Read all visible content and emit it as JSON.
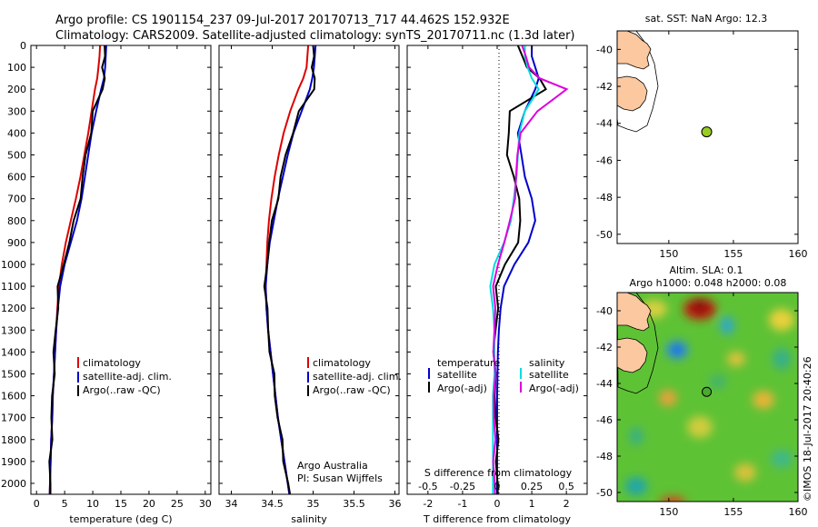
{
  "header": {
    "line1": "Argo profile: CS 1901154_237 09-Jul-2017 20170713_717 44.462S 152.932E",
    "line2": "Climatology: CARS2009. Satellite-adjusted climatology: synTS_20170711.nc (1.3d later)"
  },
  "colors": {
    "climatology": "#dd0000",
    "satellite": "#0000cc",
    "argo": "#000000",
    "sal_satellite": "#00dddd",
    "sal_argo": "#dd00dd",
    "land": "#fcc8a0",
    "float": "#99cc22"
  },
  "chart_data": [
    {
      "type": "line",
      "xlabel": "temperature (deg C)",
      "ylabel": "",
      "xlim": [
        -1,
        31
      ],
      "ylim": [
        2050,
        0
      ],
      "xticks": [
        "0",
        "5",
        "10",
        "15",
        "20",
        "25",
        "30"
      ],
      "yticks": [
        "0",
        "100",
        "200",
        "300",
        "400",
        "500",
        "600",
        "700",
        "800",
        "900",
        "1000",
        "1100",
        "1200",
        "1300",
        "1400",
        "1500",
        "1600",
        "1700",
        "1800",
        "1900",
        "2000"
      ],
      "depth": [
        0,
        50,
        100,
        150,
        200,
        300,
        400,
        500,
        600,
        700,
        800,
        900,
        1000,
        1100,
        1200,
        1300,
        1400,
        1500,
        1600,
        1700,
        1800,
        1900,
        2000,
        2050
      ],
      "legend": [
        "climatology",
        "satellite-adj. clim.",
        "Argo(..raw -QC)"
      ],
      "series": [
        {
          "name": "climatology",
          "color": "#dd0000",
          "values": [
            11.3,
            11.2,
            11.0,
            10.8,
            10.4,
            9.8,
            9.2,
            8.5,
            7.8,
            7.0,
            6.1,
            5.2,
            4.5,
            4.0,
            3.7,
            3.5,
            3.3,
            3.1,
            2.9,
            2.8,
            2.6,
            2.5,
            2.4,
            2.35
          ]
        },
        {
          "name": "satellite-adj. clim.",
          "color": "#0000cc",
          "values": [
            12.4,
            12.3,
            12.2,
            12.0,
            11.5,
            10.6,
            9.8,
            9.2,
            8.6,
            8.0,
            7.2,
            6.1,
            5.0,
            4.2,
            3.8,
            3.5,
            3.3,
            3.1,
            2.9,
            2.8,
            2.6,
            2.5,
            2.4,
            2.35
          ]
        },
        {
          "name": "Argo(..raw -QC)",
          "color": "#000000",
          "values": [
            12.1,
            12.0,
            11.9,
            12.0,
            11.7,
            10.2,
            9.5,
            8.8,
            8.3,
            7.6,
            6.8,
            5.8,
            4.7,
            4.0,
            3.7,
            3.4,
            3.2,
            3.0,
            2.9,
            2.7,
            2.6,
            2.5,
            2.4,
            2.35
          ]
        }
      ]
    },
    {
      "type": "line",
      "xlabel": "salinity",
      "xlim": [
        33.85,
        36.05
      ],
      "ylim": [
        2050,
        0
      ],
      "xticks": [
        "34",
        "34.5",
        "35",
        "35.5",
        "36"
      ],
      "depth": [
        0,
        50,
        100,
        150,
        200,
        300,
        400,
        500,
        600,
        700,
        800,
        900,
        1000,
        1100,
        1200,
        1300,
        1400,
        1500,
        1600,
        1700,
        1800,
        1900,
        2000,
        2050
      ],
      "legend": [
        "climatology",
        "satellite-adj. clim.",
        "Argo(..raw -QC)"
      ],
      "annotation": [
        "Argo Australia",
        "PI: Susan Wijffels"
      ],
      "series": [
        {
          "name": "climatology",
          "color": "#dd0000",
          "values": [
            34.94,
            34.93,
            34.92,
            34.88,
            34.82,
            34.72,
            34.64,
            34.58,
            34.53,
            34.49,
            34.46,
            34.44,
            34.43,
            34.42,
            34.43,
            34.45,
            34.48,
            34.51,
            34.54,
            34.57,
            34.61,
            34.65,
            34.69,
            34.71
          ]
        },
        {
          "name": "satellite-adj. clim.",
          "color": "#0000cc",
          "values": [
            35.03,
            35.02,
            35.01,
            34.99,
            34.96,
            34.86,
            34.76,
            34.69,
            34.63,
            34.57,
            34.52,
            34.47,
            34.44,
            34.42,
            34.43,
            34.45,
            34.48,
            34.51,
            34.54,
            34.57,
            34.61,
            34.65,
            34.69,
            34.71
          ]
        },
        {
          "name": "Argo(..raw -QC)",
          "color": "#000000",
          "values": [
            35.0,
            35.0,
            35.0,
            35.01,
            35.01,
            34.84,
            34.74,
            34.67,
            34.61,
            34.56,
            34.51,
            34.46,
            34.43,
            34.42,
            34.43,
            34.45,
            34.48,
            34.51,
            34.54,
            34.57,
            34.61,
            34.65,
            34.69,
            34.71
          ]
        }
      ]
    },
    {
      "type": "line",
      "xlabel": "T difference from climatology",
      "xlabel_top": "S difference from climatology",
      "xlim": [
        -2.6,
        2.6
      ],
      "ylim": [
        2050,
        0
      ],
      "xticks": [
        "-2",
        "-1",
        "0",
        "1",
        "2"
      ],
      "xticks_s": [
        "-0.5",
        "-0.25",
        "0",
        "0.25",
        "0.5"
      ],
      "legend_temperature": [
        "temperature",
        "satellite",
        "Argo(-adj)"
      ],
      "legend_salinity": [
        "salinity",
        "satellite",
        "Argo(-adj)"
      ],
      "depth": [
        0,
        50,
        100,
        150,
        200,
        300,
        400,
        500,
        600,
        700,
        800,
        900,
        1000,
        1100,
        1200,
        1300,
        1400,
        1500,
        1600,
        1700,
        1800,
        1900,
        2000,
        2050
      ],
      "series": [
        {
          "name": "temperature satellite",
          "color": "#0000cc",
          "values": [
            1.0,
            1.0,
            1.1,
            1.2,
            1.1,
            0.8,
            0.6,
            0.7,
            0.8,
            1.0,
            1.1,
            0.9,
            0.5,
            0.2,
            0.1,
            0.05,
            0.02,
            0.01,
            0.0,
            0.0,
            0.0,
            0.0,
            0.0,
            0.0
          ]
        },
        {
          "name": "temperature Argo(-adj)",
          "color": "#000000",
          "values": [
            0.6,
            0.7,
            0.9,
            1.2,
            1.4,
            0.4,
            0.3,
            0.3,
            0.5,
            0.6,
            0.7,
            0.6,
            0.2,
            0.0,
            0.0,
            -0.05,
            -0.08,
            -0.08,
            -0.05,
            -0.03,
            0.0,
            0.0,
            0.0,
            0.0
          ]
        },
        {
          "name": "salinity satellite",
          "color": "#00dddd",
          "values": [
            0.2,
            0.2,
            0.22,
            0.25,
            0.3,
            0.2,
            0.16,
            0.15,
            0.14,
            0.12,
            0.1,
            0.05,
            -0.02,
            -0.05,
            -0.03,
            -0.02,
            -0.02,
            -0.02,
            -0.03,
            -0.03,
            -0.03,
            -0.03,
            -0.03,
            -0.03
          ]
        },
        {
          "name": "salinity Argo(-adj)",
          "color": "#dd00dd",
          "values": [
            0.18,
            0.2,
            0.24,
            0.3,
            0.5,
            0.3,
            0.16,
            0.15,
            0.14,
            0.12,
            0.1,
            0.05,
            0.0,
            -0.02,
            -0.02,
            -0.02,
            -0.02,
            -0.02,
            -0.02,
            -0.02,
            -0.02,
            -0.02,
            -0.02,
            -0.02
          ]
        }
      ]
    },
    {
      "type": "scatter",
      "title": "sat. SST: NaN Argo: 12.3",
      "xlim": [
        146,
        160
      ],
      "ylim": [
        -50.5,
        -39
      ],
      "xticks": [
        "150",
        "155",
        "160"
      ],
      "yticks": [
        "-40",
        "-42",
        "-44",
        "-46",
        "-48",
        "-50"
      ],
      "float_position": {
        "lon": 152.932,
        "lat": -44.462
      }
    },
    {
      "type": "heatmap",
      "title_line1": "Altim. SLA: 0.1",
      "title_line2": "Argo h1000: 0.048 h2000: 0.08",
      "xlim": [
        146,
        160
      ],
      "ylim": [
        -50.5,
        -39
      ],
      "xticks": [
        "150",
        "155",
        "160"
      ],
      "yticks": [
        "-40",
        "-42",
        "-44",
        "-46",
        "-48",
        "-50"
      ],
      "float_position": {
        "lon": 152.932,
        "lat": -44.462
      }
    }
  ],
  "side_label": "©IMOS 18-Jul-2017 20:40:26"
}
